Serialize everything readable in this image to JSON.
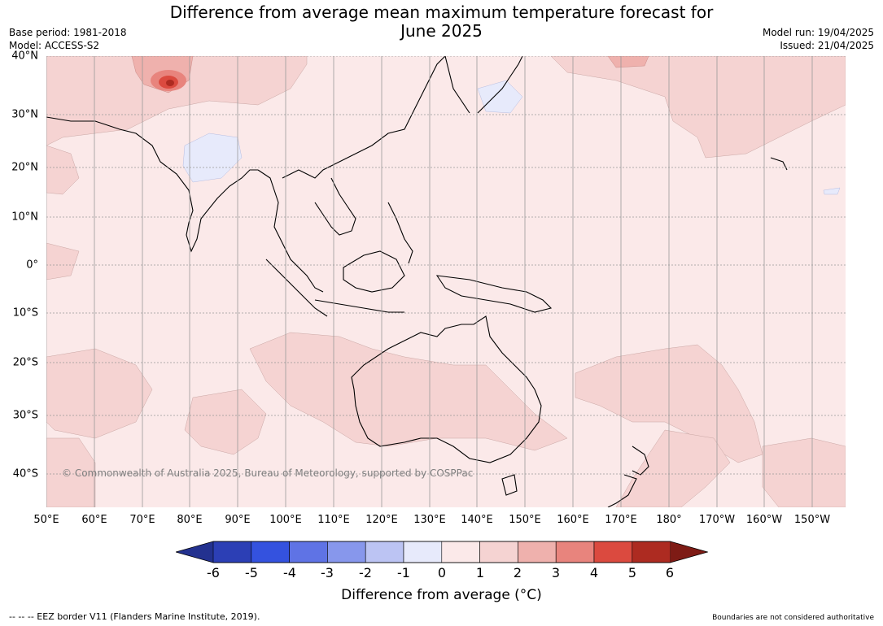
{
  "title_line1": "Difference from average mean maximum temperature forecast for",
  "title_line2": "June 2025",
  "base_period": "Base period: 1981-2018",
  "model": "Model: ACCESS-S2",
  "model_run": "Model run: 19/04/2025",
  "issued": "Issued: 21/04/2025",
  "copyright": "© Commonwealth of Australia 2025, Bureau of Meteorology, supported by COSPPac",
  "lat_labels": [
    "40°N",
    "30°N",
    "20°N",
    "10°N",
    "0°",
    "10°S",
    "20°S",
    "30°S",
    "40°S"
  ],
  "lon_labels": [
    "50°E",
    "60°E",
    "70°E",
    "80°E",
    "90°E",
    "100°E",
    "110°E",
    "120°E",
    "130°E",
    "140°E",
    "150°E",
    "160°E",
    "170°E",
    "180°",
    "170°W",
    "160°W",
    "150°W"
  ],
  "colorbar": {
    "ticks": [
      "-6",
      "-5",
      "-4",
      "-3",
      "-2",
      "-1",
      "0",
      "1",
      "2",
      "3",
      "4",
      "5",
      "6"
    ],
    "colors": [
      "#23318f",
      "#2c3fb5",
      "#3452df",
      "#5f73e5",
      "#8797ec",
      "#bcc4f3",
      "#e7eafb",
      "#fbe9e9",
      "#f5d3d2",
      "#efb1ad",
      "#e8847d",
      "#db4a3f",
      "#ad2b21",
      "#7e1b15"
    ],
    "label": "Difference from average (°C)"
  },
  "footer_left": "--  --  -- EEZ border V11 (Flanders Marine Institute, 2019).",
  "footer_right": "Boundaries are not considered authoritative"
}
